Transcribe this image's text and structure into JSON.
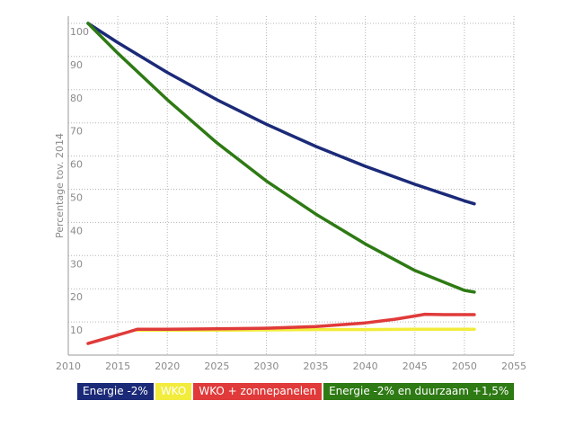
{
  "chart_data": {
    "type": "line",
    "title": "",
    "xlabel": "",
    "ylabel": "Percentage tov. 2014",
    "xlim": [
      2010,
      2055
    ],
    "ylim": [
      0,
      100
    ],
    "x_ticks": [
      2010,
      2015,
      2020,
      2025,
      2030,
      2035,
      2040,
      2045,
      2050,
      2055
    ],
    "y_ticks": [
      10,
      20,
      30,
      40,
      50,
      60,
      70,
      80,
      90,
      100
    ],
    "grid": true,
    "legend_position": "bottom",
    "series": [
      {
        "name": "Energie -2%",
        "color": "#1b2a78",
        "x": [
          2012,
          2015,
          2020,
          2025,
          2030,
          2035,
          2040,
          2045,
          2050,
          2051
        ],
        "values": [
          100,
          94.2,
          85.2,
          77.0,
          69.6,
          62.9,
          56.9,
          51.5,
          46.5,
          45.6
        ]
      },
      {
        "name": "WKO",
        "color": "#f2ec3c",
        "x": [
          2017,
          2020,
          2025,
          2030,
          2035,
          2040,
          2045,
          2050,
          2051
        ],
        "values": [
          7.5,
          7.5,
          7.5,
          7.6,
          7.7,
          7.7,
          7.8,
          7.8,
          7.8
        ]
      },
      {
        "name": "WKO + zonnepanelen",
        "color": "#e03a3a",
        "x": [
          2012,
          2014,
          2016,
          2017,
          2020,
          2025,
          2030,
          2035,
          2040,
          2043,
          2045,
          2046,
          2048,
          2051
        ],
        "values": [
          3.5,
          5.2,
          6.9,
          7.8,
          7.8,
          7.9,
          8.1,
          8.6,
          9.7,
          10.8,
          11.8,
          12.3,
          12.2,
          12.2
        ]
      },
      {
        "name": "Energie -2% en duurzaam +1,5%",
        "color": "#2e7a14",
        "x": [
          2012,
          2015,
          2020,
          2025,
          2030,
          2035,
          2040,
          2045,
          2050,
          2051
        ],
        "values": [
          100,
          91.0,
          77.0,
          64.0,
          52.5,
          42.5,
          33.5,
          25.5,
          19.5,
          19.0
        ]
      }
    ]
  },
  "legend": {
    "items": [
      {
        "label": "Energie -2%",
        "bg": "#1b2a78",
        "fg": "#ffffff"
      },
      {
        "label": "WKO",
        "bg": "#f2ec3c",
        "fg": "#ffffff"
      },
      {
        "label": "WKO + zonnepanelen",
        "bg": "#e03a3a",
        "fg": "#ffffff"
      },
      {
        "label": "Energie -2% en duurzaam +1,5%",
        "bg": "#2e7a14",
        "fg": "#ffffff"
      }
    ]
  }
}
